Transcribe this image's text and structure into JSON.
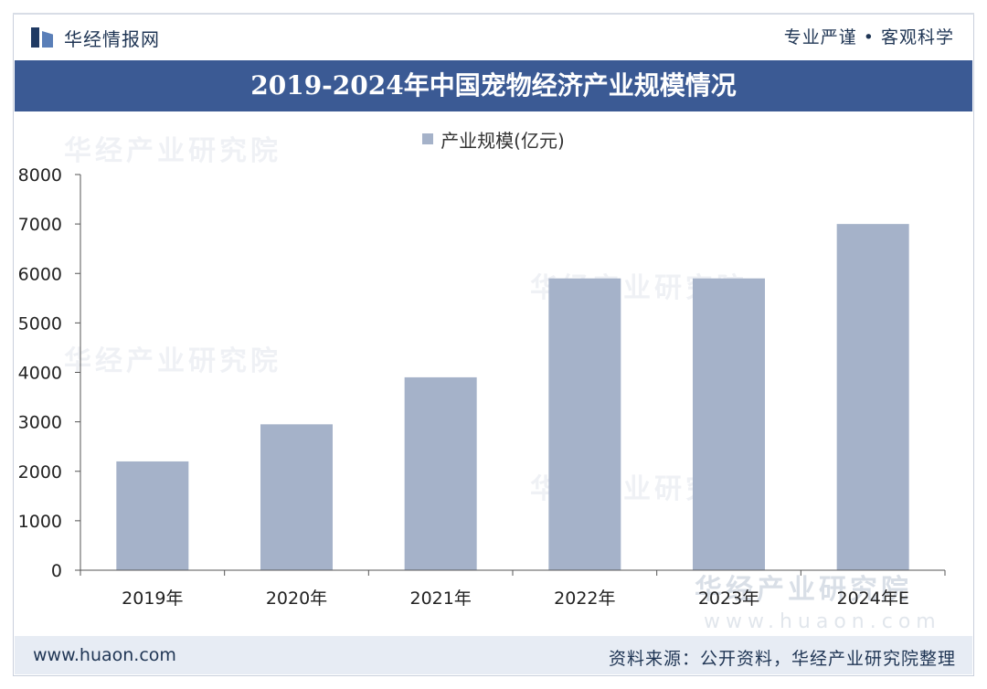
{
  "header": {
    "brand": "华经情报网",
    "slogan": "专业严谨 • 客观科学"
  },
  "watermarks": {
    "text": "华经产业研究院",
    "url": "www.huaon.com"
  },
  "footer": {
    "website": "www.huaon.com",
    "source": "资料来源：公开资料，华经产业研究院整理"
  },
  "colors": {
    "banner": "#3b5a94",
    "bar": "#a5b2c9",
    "text_dark": "#1f3554"
  },
  "chart_data": {
    "type": "bar",
    "title": "2019-2024年中国宠物经济产业规模情况",
    "legend": "产业规模(亿元)",
    "legend_position": "top-center",
    "categories": [
      "2019年",
      "2020年",
      "2021年",
      "2022年",
      "2023年",
      "2024年E"
    ],
    "series": [
      {
        "name": "产业规模(亿元)",
        "values": [
          2200,
          2950,
          3900,
          5900,
          5900,
          7000
        ]
      }
    ],
    "ylim": [
      0,
      8000
    ],
    "yticks": [
      0,
      1000,
      2000,
      3000,
      4000,
      5000,
      6000,
      7000,
      8000
    ],
    "grid": false
  }
}
